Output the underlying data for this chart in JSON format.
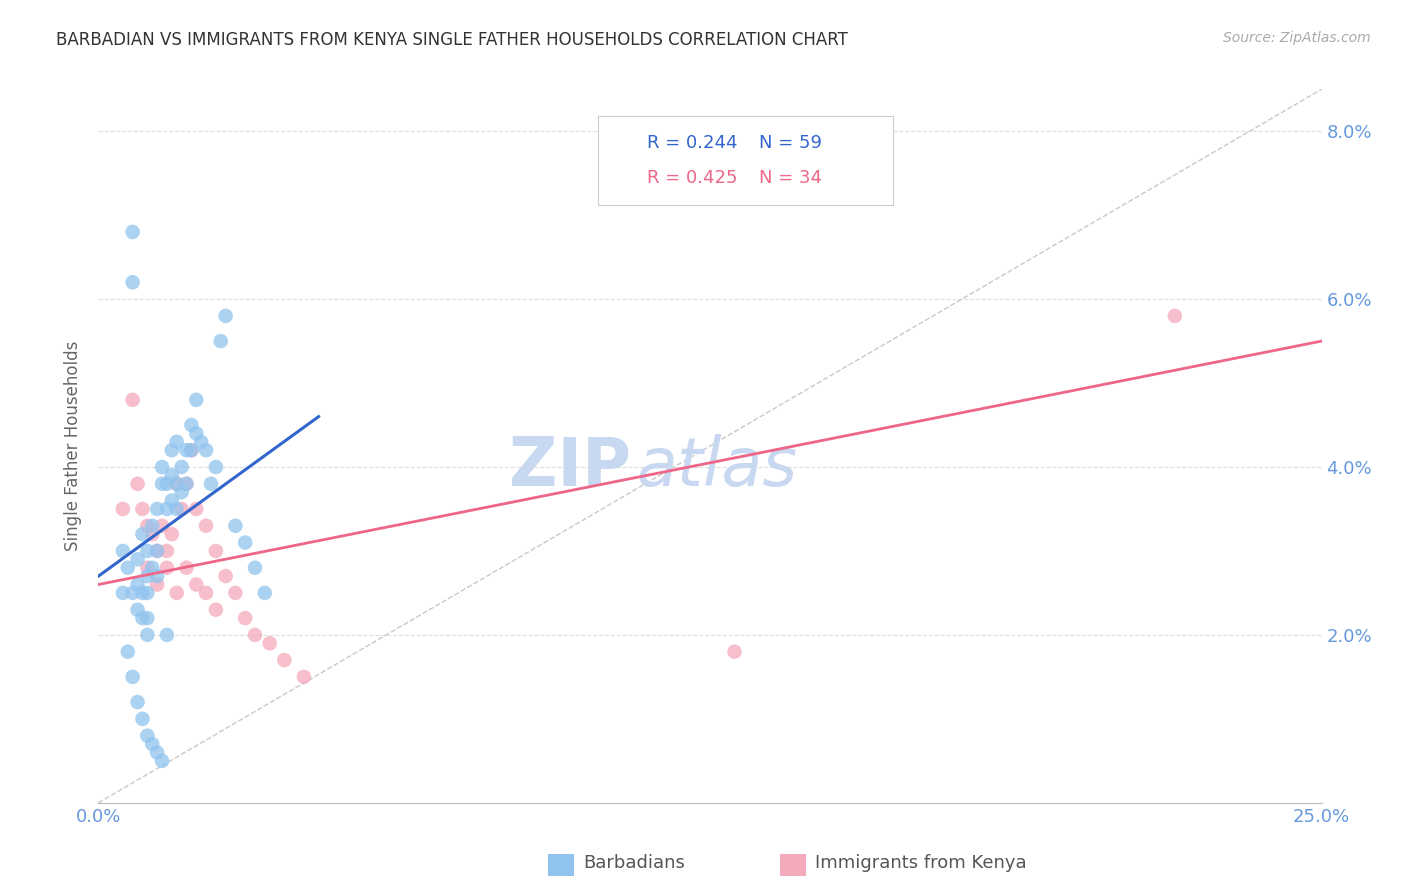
{
  "title": "BARBADIAN VS IMMIGRANTS FROM KENYA SINGLE FATHER HOUSEHOLDS CORRELATION CHART",
  "source": "Source: ZipAtlas.com",
  "ylabel": "Single Father Households",
  "xlim": [
    0.0,
    0.25
  ],
  "ylim": [
    0.0,
    0.085
  ],
  "yticks": [
    0.0,
    0.02,
    0.04,
    0.06,
    0.08
  ],
  "ytick_labels": [
    "",
    "2.0%",
    "4.0%",
    "6.0%",
    "8.0%"
  ],
  "xticks": [
    0.0,
    0.05,
    0.1,
    0.15,
    0.2,
    0.25
  ],
  "xtick_labels": [
    "0.0%",
    "",
    "",
    "",
    "",
    "25.0%"
  ],
  "legend_r1": "R = 0.244",
  "legend_n1": "N = 59",
  "legend_r2": "R = 0.425",
  "legend_n2": "N = 34",
  "color_blue": "#90C4EE",
  "color_pink": "#F5AABB",
  "color_blue_line": "#3366CC",
  "color_pink_line": "#EE6688",
  "color_diag": "#BBBBBB",
  "color_axis_text": "#6699DD",
  "color_grid": "#DDDDDD",
  "watermark_zip": "ZIP",
  "watermark_atlas": "atlas",
  "watermark_color": "#C8D8F0",
  "blue_x": [
    0.005,
    0.005,
    0.006,
    0.007,
    0.007,
    0.007,
    0.008,
    0.008,
    0.008,
    0.009,
    0.009,
    0.009,
    0.01,
    0.01,
    0.01,
    0.01,
    0.01,
    0.011,
    0.011,
    0.012,
    0.012,
    0.012,
    0.013,
    0.013,
    0.014,
    0.014,
    0.015,
    0.015,
    0.015,
    0.016,
    0.016,
    0.016,
    0.017,
    0.017,
    0.018,
    0.018,
    0.019,
    0.019,
    0.02,
    0.02,
    0.021,
    0.022,
    0.023,
    0.024,
    0.025,
    0.026,
    0.028,
    0.03,
    0.032,
    0.034,
    0.006,
    0.007,
    0.008,
    0.009,
    0.01,
    0.011,
    0.012,
    0.013,
    0.014
  ],
  "blue_y": [
    0.03,
    0.025,
    0.028,
    0.068,
    0.062,
    0.025,
    0.026,
    0.029,
    0.023,
    0.032,
    0.025,
    0.022,
    0.03,
    0.027,
    0.025,
    0.022,
    0.02,
    0.033,
    0.028,
    0.035,
    0.03,
    0.027,
    0.04,
    0.038,
    0.038,
    0.035,
    0.042,
    0.039,
    0.036,
    0.043,
    0.038,
    0.035,
    0.04,
    0.037,
    0.042,
    0.038,
    0.045,
    0.042,
    0.048,
    0.044,
    0.043,
    0.042,
    0.038,
    0.04,
    0.055,
    0.058,
    0.033,
    0.031,
    0.028,
    0.025,
    0.018,
    0.015,
    0.012,
    0.01,
    0.008,
    0.007,
    0.006,
    0.005,
    0.02
  ],
  "pink_x": [
    0.005,
    0.007,
    0.008,
    0.009,
    0.01,
    0.011,
    0.012,
    0.013,
    0.014,
    0.015,
    0.016,
    0.017,
    0.018,
    0.019,
    0.02,
    0.022,
    0.024,
    0.026,
    0.028,
    0.03,
    0.032,
    0.035,
    0.038,
    0.042,
    0.01,
    0.012,
    0.014,
    0.016,
    0.018,
    0.02,
    0.022,
    0.024,
    0.22,
    0.13
  ],
  "pink_y": [
    0.035,
    0.048,
    0.038,
    0.035,
    0.033,
    0.032,
    0.03,
    0.033,
    0.03,
    0.032,
    0.038,
    0.035,
    0.038,
    0.042,
    0.035,
    0.033,
    0.03,
    0.027,
    0.025,
    0.022,
    0.02,
    0.019,
    0.017,
    0.015,
    0.028,
    0.026,
    0.028,
    0.025,
    0.028,
    0.026,
    0.025,
    0.023,
    0.058,
    0.018
  ],
  "blue_line_x": [
    0.0,
    0.045
  ],
  "blue_line_y": [
    0.027,
    0.046
  ],
  "pink_line_x": [
    0.0,
    0.25
  ],
  "pink_line_y": [
    0.026,
    0.055
  ]
}
